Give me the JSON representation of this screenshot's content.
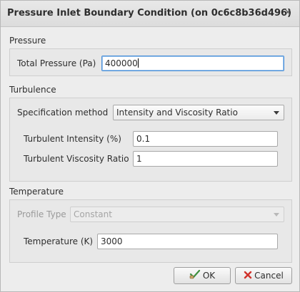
{
  "window": {
    "title": "Pressure Inlet Boundary Condition (on 0c6c8b36d496)",
    "close_glyph": "×"
  },
  "pressure": {
    "section_title": "Pressure",
    "total_pressure_label": "Total Pressure (Pa)",
    "total_pressure_value": "400000"
  },
  "turbulence": {
    "section_title": "Turbulence",
    "spec_method_label": "Specification method",
    "spec_method_value": "Intensity and Viscosity Ratio",
    "intensity_label": "Turbulent Intensity (%)",
    "intensity_value": "0.1",
    "viscosity_ratio_label": "Turbulent Viscosity Ratio",
    "viscosity_ratio_value": "1"
  },
  "temperature": {
    "section_title": "Temperature",
    "profile_type_label": "Profile Type",
    "profile_type_value": "Constant",
    "temperature_label": "Temperature (K)",
    "temperature_value": "3000"
  },
  "buttons": {
    "ok_label": "OK",
    "cancel_label": "Cancel"
  },
  "icons": {
    "ok": "check-hand-icon",
    "cancel": "red-x-icon"
  },
  "colors": {
    "focus_border": "#4a90d9",
    "cancel_icon": "#d0322b",
    "ok_icon": "#3d8f3d"
  }
}
